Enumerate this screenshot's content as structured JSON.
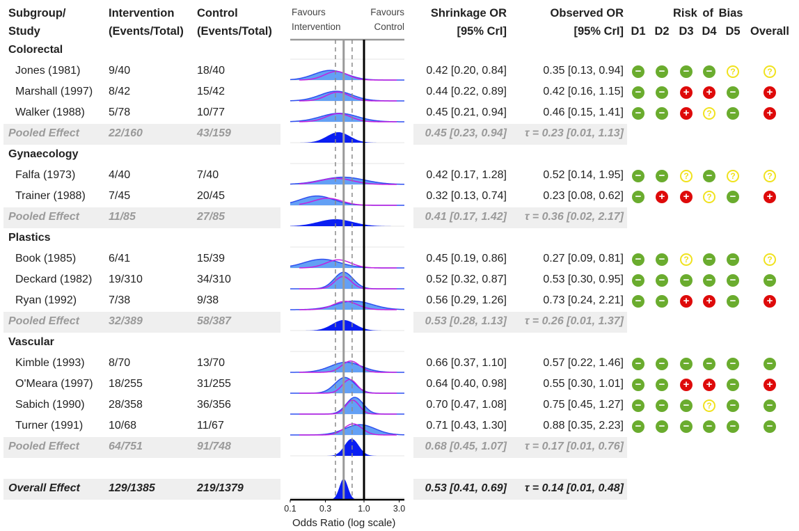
{
  "header": {
    "study": [
      "Subgroup/",
      "Study"
    ],
    "intervention": [
      "Intervention",
      "(Events/Total)"
    ],
    "control": [
      "Control",
      "(Events/Total)"
    ],
    "favours_left": [
      "Favours",
      "Intervention"
    ],
    "favours_right": [
      "Favours",
      "Control"
    ],
    "shrinkage": [
      "Shrinkage OR",
      "[95% CrI]"
    ],
    "observed": [
      "Observed OR",
      "[95% CrI]"
    ],
    "rob_title": "Risk of Bias",
    "rob_cols": [
      "D1",
      "D2",
      "D3",
      "D4",
      "D5",
      "Overall"
    ]
  },
  "colors": {
    "observed_fill": "#63a0f5",
    "observed_line": "#2f4ff0",
    "shrinkage_line": "#c21fe0",
    "pooled_fill": "#0a1ef2",
    "rob_low": "#6aac2e",
    "rob_high": "#de0a0a",
    "rob_some": "#f0e21e"
  },
  "rob_symbols": {
    "low": "−",
    "high": "+",
    "some": "?"
  },
  "chart_data": {
    "type": "forest-density",
    "xlabel": "Odds Ratio (log scale)",
    "xscale": "log",
    "xlim": [
      0.1,
      3.0
    ],
    "xticks": [
      0.1,
      0.3,
      1.0,
      3.0
    ],
    "xtick_labels": [
      "0.1",
      "0.3",
      "1.0",
      "3.0"
    ],
    "reference_line": 1.0,
    "overall_line": 0.53,
    "overall_ci_lines": [
      0.41,
      0.69
    ],
    "rows": [
      {
        "type": "subgroup",
        "label": "Colorectal"
      },
      {
        "type": "study",
        "label": "Jones (1981)",
        "int": "9/40",
        "ctrl": "18/40",
        "shrink": "0.42 [0.20, 0.84]",
        "obs": "0.35 [0.13, 0.94]",
        "shrink_est": [
          0.42,
          0.2,
          0.84
        ],
        "obs_est": [
          0.35,
          0.13,
          0.94
        ],
        "rob": [
          "low",
          "low",
          "low",
          "low",
          "some",
          "some"
        ]
      },
      {
        "type": "study",
        "label": "Marshall (1997)",
        "int": "8/42",
        "ctrl": "15/42",
        "shrink": "0.44 [0.22, 0.89]",
        "obs": "0.42 [0.16, 1.15]",
        "shrink_est": [
          0.44,
          0.22,
          0.89
        ],
        "obs_est": [
          0.42,
          0.16,
          1.15
        ],
        "rob": [
          "low",
          "low",
          "high",
          "high",
          "low",
          "high"
        ]
      },
      {
        "type": "study",
        "label": "Walker (1988)",
        "int": "5/78",
        "ctrl": "10/77",
        "shrink": "0.45 [0.21, 0.94]",
        "obs": "0.46 [0.15, 1.41]",
        "shrink_est": [
          0.45,
          0.21,
          0.94
        ],
        "obs_est": [
          0.46,
          0.15,
          1.41
        ],
        "rob": [
          "low",
          "low",
          "high",
          "some",
          "low",
          "high"
        ]
      },
      {
        "type": "pooled",
        "label": "Pooled Effect",
        "int": "22/160",
        "ctrl": "43/159",
        "shrink": "0.45 [0.23, 0.94]",
        "tau": "τ = 0.23 [0.01, 1.13]",
        "est": [
          0.45,
          0.23,
          0.94
        ]
      },
      {
        "type": "subgroup",
        "label": "Gynaecology"
      },
      {
        "type": "study",
        "label": "Falfa (1973)",
        "int": "4/40",
        "ctrl": "7/40",
        "shrink": "0.42 [0.17, 1.28]",
        "obs": "0.52 [0.14, 1.95]",
        "shrink_est": [
          0.42,
          0.17,
          1.28
        ],
        "obs_est": [
          0.52,
          0.14,
          1.95
        ],
        "rob": [
          "low",
          "low",
          "some",
          "low",
          "some",
          "some"
        ]
      },
      {
        "type": "study",
        "label": "Trainer (1988)",
        "int": "7/45",
        "ctrl": "20/45",
        "shrink": "0.32 [0.13, 0.74]",
        "obs": "0.23 [0.08, 0.62]",
        "shrink_est": [
          0.32,
          0.13,
          0.74
        ],
        "obs_est": [
          0.23,
          0.08,
          0.62
        ],
        "rob": [
          "low",
          "high",
          "high",
          "some",
          "low",
          "high"
        ]
      },
      {
        "type": "pooled",
        "label": "Pooled Effect",
        "int": "11/85",
        "ctrl": "27/85",
        "shrink": "0.41 [0.17, 1.42]",
        "tau": "τ = 0.36 [0.02, 2.17]",
        "est": [
          0.41,
          0.17,
          1.42
        ]
      },
      {
        "type": "subgroup",
        "label": "Plastics"
      },
      {
        "type": "study",
        "label": "Book (1985)",
        "int": "6/41",
        "ctrl": "15/39",
        "shrink": "0.45 [0.19, 0.86]",
        "obs": "0.27 [0.09, 0.81]",
        "shrink_est": [
          0.45,
          0.19,
          0.86
        ],
        "obs_est": [
          0.27,
          0.09,
          0.81
        ],
        "rob": [
          "low",
          "low",
          "some",
          "low",
          "low",
          "some"
        ]
      },
      {
        "type": "study",
        "label": "Deckard (1982)",
        "int": "19/310",
        "ctrl": "34/310",
        "shrink": "0.52 [0.32, 0.87]",
        "obs": "0.53 [0.30, 0.95]",
        "shrink_est": [
          0.52,
          0.32,
          0.87
        ],
        "obs_est": [
          0.53,
          0.3,
          0.95
        ],
        "rob": [
          "low",
          "low",
          "low",
          "low",
          "low",
          "low"
        ]
      },
      {
        "type": "study",
        "label": "Ryan (1992)",
        "int": "7/38",
        "ctrl": "9/38",
        "shrink": "0.56 [0.29, 1.26]",
        "obs": "0.73 [0.24, 2.21]",
        "shrink_est": [
          0.56,
          0.29,
          1.26
        ],
        "obs_est": [
          0.73,
          0.24,
          2.21
        ],
        "rob": [
          "low",
          "low",
          "high",
          "high",
          "low",
          "high"
        ]
      },
      {
        "type": "pooled",
        "label": "Pooled Effect",
        "int": "32/389",
        "ctrl": "58/387",
        "shrink": "0.53 [0.28, 1.13]",
        "tau": "τ = 0.26 [0.01, 1.37]",
        "est": [
          0.53,
          0.28,
          1.13
        ]
      },
      {
        "type": "subgroup",
        "label": "Vascular"
      },
      {
        "type": "study",
        "label": "Kimble (1993)",
        "int": "8/70",
        "ctrl": "13/70",
        "shrink": "0.66 [0.37, 1.10]",
        "obs": "0.57 [0.22, 1.46]",
        "shrink_est": [
          0.66,
          0.37,
          1.1
        ],
        "obs_est": [
          0.57,
          0.22,
          1.46
        ],
        "rob": [
          "low",
          "low",
          "low",
          "low",
          "low",
          "low"
        ]
      },
      {
        "type": "study",
        "label": "O'Meara (1997)",
        "int": "18/255",
        "ctrl": "31/255",
        "shrink": "0.64 [0.40, 0.98]",
        "obs": "0.55 [0.30, 1.01]",
        "shrink_est": [
          0.64,
          0.4,
          0.98
        ],
        "obs_est": [
          0.55,
          0.3,
          1.01
        ],
        "rob": [
          "low",
          "low",
          "high",
          "high",
          "low",
          "high"
        ]
      },
      {
        "type": "study",
        "label": "Sabich (1990)",
        "int": "28/358",
        "ctrl": "36/356",
        "shrink": "0.70 [0.47, 1.08]",
        "obs": "0.75 [0.45, 1.27]",
        "shrink_est": [
          0.7,
          0.47,
          1.08
        ],
        "obs_est": [
          0.75,
          0.45,
          1.27
        ],
        "rob": [
          "low",
          "low",
          "low",
          "some",
          "low",
          "low"
        ]
      },
      {
        "type": "study",
        "label": "Turner (1991)",
        "int": "10/68",
        "ctrl": "11/67",
        "shrink": "0.71 [0.43, 1.30]",
        "obs": "0.88 [0.35, 2.23]",
        "shrink_est": [
          0.71,
          0.43,
          1.3
        ],
        "obs_est": [
          0.88,
          0.35,
          2.23
        ],
        "rob": [
          "low",
          "low",
          "low",
          "low",
          "low",
          "low"
        ]
      },
      {
        "type": "pooled",
        "label": "Pooled Effect",
        "int": "64/751",
        "ctrl": "91/748",
        "shrink": "0.68 [0.45, 1.07]",
        "tau": "τ = 0.17 [0.01, 0.76]",
        "est": [
          0.68,
          0.45,
          1.07
        ]
      },
      {
        "type": "blank"
      },
      {
        "type": "overall",
        "label": "Overall Effect",
        "int": "129/1385",
        "ctrl": "219/1379",
        "shrink": "0.53 [0.41, 0.69]",
        "tau": "τ = 0.14 [0.01, 0.48]",
        "est": [
          0.53,
          0.41,
          0.69
        ]
      }
    ]
  }
}
